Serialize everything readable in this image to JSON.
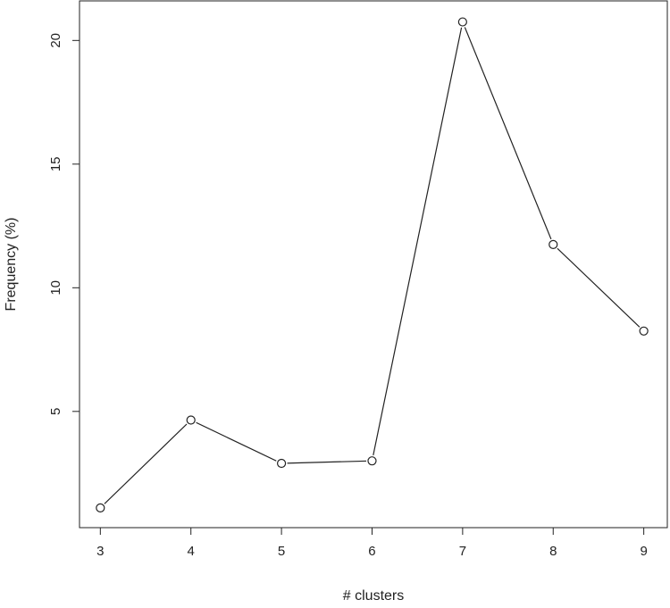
{
  "chart_data": {
    "type": "line",
    "markers": "open-circle",
    "x": [
      3,
      4,
      5,
      6,
      7,
      8,
      9
    ],
    "series": [
      {
        "values": [
          1.1,
          4.65,
          2.9,
          3.0,
          20.75,
          11.75,
          8.25
        ]
      }
    ],
    "xlabel": "# clusters",
    "ylabel": "Frequency (%)",
    "xlim": [
      2.77,
      9.26
    ],
    "ylim": [
      0.3,
      21.6
    ],
    "xticks": [
      "3",
      "4",
      "5",
      "6",
      "7",
      "8",
      "9"
    ],
    "yticks": [
      "5",
      "10",
      "15",
      "20"
    ],
    "grid": false,
    "box": true,
    "colors": {
      "line": "#222222",
      "marker_stroke": "#222222",
      "marker_fill": "#ffffff",
      "frame": "#222222"
    }
  }
}
